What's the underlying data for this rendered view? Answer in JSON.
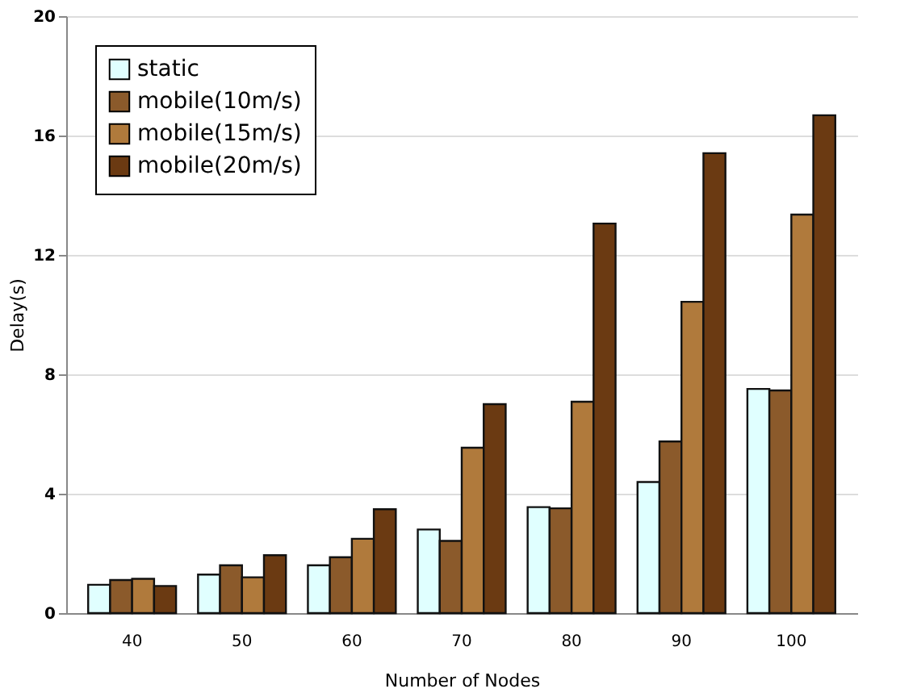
{
  "chart_data": {
    "type": "bar",
    "xlabel": "Number of Nodes",
    "ylabel": "Delay(s)",
    "categories": [
      "40",
      "50",
      "60",
      "70",
      "80",
      "90",
      "100"
    ],
    "series": [
      {
        "name": "static",
        "color": "#e0ffff",
        "values": [
          0.95,
          1.29,
          1.6,
          2.8,
          3.55,
          4.39,
          7.51
        ]
      },
      {
        "name": "mobile(10m/s)",
        "color": "#8b5a2b",
        "values": [
          1.11,
          1.6,
          1.87,
          2.42,
          3.51,
          5.75,
          7.46
        ]
      },
      {
        "name": "mobile(15m/s)",
        "color": "#b07a3c",
        "values": [
          1.15,
          1.2,
          2.49,
          5.54,
          7.08,
          10.43,
          13.35
        ]
      },
      {
        "name": "mobile(20m/s)",
        "color": "#6b3a12",
        "values": [
          0.91,
          1.94,
          3.48,
          7.0,
          13.05,
          15.41,
          16.68
        ]
      }
    ],
    "ylim": [
      0,
      20
    ],
    "yticks": [
      0,
      4,
      8,
      12,
      16,
      20
    ],
    "grid": "y",
    "legend": "top left"
  }
}
